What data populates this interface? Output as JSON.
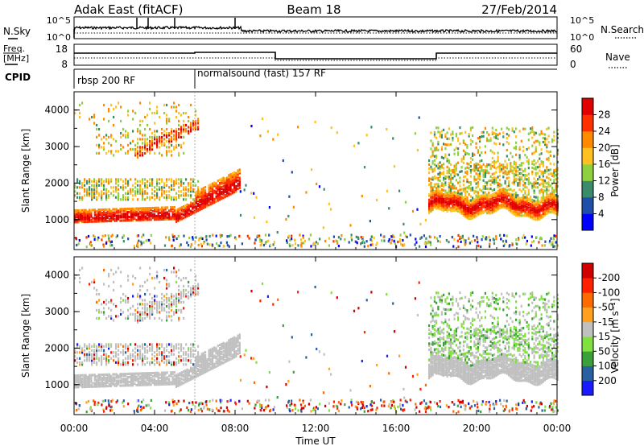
{
  "header": {
    "station": "Adak East (fitACF)",
    "beam": "Beam 18",
    "date": "27/Feb/2014"
  },
  "top_panels": {
    "nsky_label": "N.Sky",
    "nsearch_label": "N.Search",
    "nave_label": "Nave",
    "freq_label_1": "Freq.",
    "freq_label_2": "[MHz]",
    "cpid_label": "CPID",
    "nsky_ticks": [
      "10^5",
      "10^0"
    ],
    "nsearch_ticks": [
      "10^5",
      "10^0"
    ],
    "freq_ticks": [
      "18",
      "8"
    ],
    "nave_ticks": [
      "60",
      "0"
    ],
    "cpid_segments": [
      {
        "label": "rbsp 200 RF",
        "start": 0,
        "end": 6
      },
      {
        "label": "normalsound (fast) 157 RF",
        "start": 6,
        "end": 24
      }
    ]
  },
  "chart_data": [
    {
      "type": "heatmap",
      "panel": "power",
      "ylabel": "Slant Range [km]",
      "yticks": [
        "1000",
        "2000",
        "3000",
        "4000"
      ],
      "ylim": [
        180,
        4500
      ],
      "xlim": [
        0,
        24
      ],
      "colorbar_label": "Power [dB]",
      "colorbar_ticks": [
        "4",
        "8",
        "12",
        "16",
        "20",
        "24",
        "28"
      ],
      "colors": [
        "#0000ff",
        "#1f4fa8",
        "#3a8a6c",
        "#8fd040",
        "#ffc020",
        "#ff8a00",
        "#ff3000",
        "#e00000"
      ]
    },
    {
      "type": "heatmap",
      "panel": "velocity",
      "ylabel": "Slant Range [km]",
      "yticks": [
        "1000",
        "2000",
        "3000",
        "4000"
      ],
      "ylim": [
        180,
        4500
      ],
      "xlim": [
        0,
        24
      ],
      "xlabel": "Time UT",
      "xticks": [
        "00:00",
        "04:00",
        "08:00",
        "12:00",
        "16:00",
        "20:00",
        "00:00"
      ],
      "colorbar_label": "Velocity [m s⁻¹]",
      "colorbar_ticks": [
        "200",
        "100",
        "50",
        "15",
        "-15",
        "-50",
        "-100",
        "-200"
      ],
      "colors": [
        "#1a1aff",
        "#2860a0",
        "#3aa03a",
        "#80e040",
        "#c0c0c0",
        "#ffa020",
        "#ff6a00",
        "#ff2000",
        "#d00000"
      ]
    }
  ]
}
